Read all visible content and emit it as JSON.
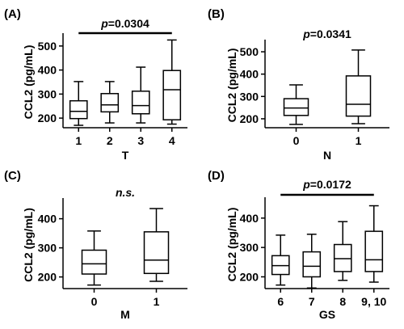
{
  "chart_data": [
    {
      "type": "box",
      "panel_label": "(A)",
      "xlabel": "T",
      "ylabel": "CCL2 (pg/mL)",
      "ylim": [
        160,
        540
      ],
      "yticks": [
        200,
        300,
        400,
        500
      ],
      "categories": [
        "1",
        "2",
        "3",
        "4"
      ],
      "boxes": [
        {
          "whisker_low": 170,
          "q1": 198,
          "median": 228,
          "q3": 272,
          "whisker_high": 352
        },
        {
          "whisker_low": 180,
          "q1": 226,
          "median": 255,
          "q3": 302,
          "whisker_high": 352
        },
        {
          "whisker_low": 180,
          "q1": 218,
          "median": 252,
          "q3": 312,
          "whisker_high": 412
        },
        {
          "whisker_low": 175,
          "q1": 193,
          "median": 318,
          "q3": 398,
          "whisker_high": 525
        }
      ],
      "annotation": {
        "italic": "p",
        "text": "=0.0304",
        "bracket": [
          "1",
          "4"
        ]
      }
    },
    {
      "type": "box",
      "panel_label": "(B)",
      "xlabel": "N",
      "ylabel": "CCL2 (pg/mL)",
      "ylim": [
        160,
        540
      ],
      "yticks": [
        200,
        300,
        400,
        500
      ],
      "categories": [
        "0",
        "1"
      ],
      "boxes": [
        {
          "whisker_low": 175,
          "q1": 215,
          "median": 248,
          "q3": 290,
          "whisker_high": 352
        },
        {
          "whisker_low": 178,
          "q1": 212,
          "median": 265,
          "q3": 392,
          "whisker_high": 508
        }
      ],
      "annotation": {
        "italic": "p",
        "text": "=0.0341",
        "bracket": null
      }
    },
    {
      "type": "box",
      "panel_label": "(C)",
      "xlabel": "M",
      "ylabel": "CCL2 (pg/mL)",
      "ylim": [
        160,
        460
      ],
      "yticks": [
        200,
        300,
        400
      ],
      "categories": [
        "0",
        "1"
      ],
      "boxes": [
        {
          "whisker_low": 172,
          "q1": 210,
          "median": 245,
          "q3": 292,
          "whisker_high": 358
        },
        {
          "whisker_low": 185,
          "q1": 212,
          "median": 258,
          "q3": 355,
          "whisker_high": 435
        }
      ],
      "annotation": {
        "italic": "n.s.",
        "text": "",
        "bracket": null
      }
    },
    {
      "type": "box",
      "panel_label": "(D)",
      "xlabel": "GS",
      "ylabel": "CCL2 (pg/mL)",
      "ylim": [
        160,
        460
      ],
      "yticks": [
        200,
        300,
        400
      ],
      "categories": [
        "6",
        "7",
        "8",
        "9, 10"
      ],
      "boxes": [
        {
          "whisker_low": 172,
          "q1": 208,
          "median": 238,
          "q3": 272,
          "whisker_high": 342
        },
        {
          "whisker_low": 162,
          "q1": 200,
          "median": 236,
          "q3": 285,
          "whisker_high": 345
        },
        {
          "whisker_low": 188,
          "q1": 218,
          "median": 262,
          "q3": 310,
          "whisker_high": 388
        },
        {
          "whisker_low": 182,
          "q1": 218,
          "median": 258,
          "q3": 355,
          "whisker_high": 442
        }
      ],
      "annotation": {
        "italic": "p",
        "text": "=0.0172",
        "bracket": [
          "6",
          "9, 10"
        ]
      }
    }
  ]
}
